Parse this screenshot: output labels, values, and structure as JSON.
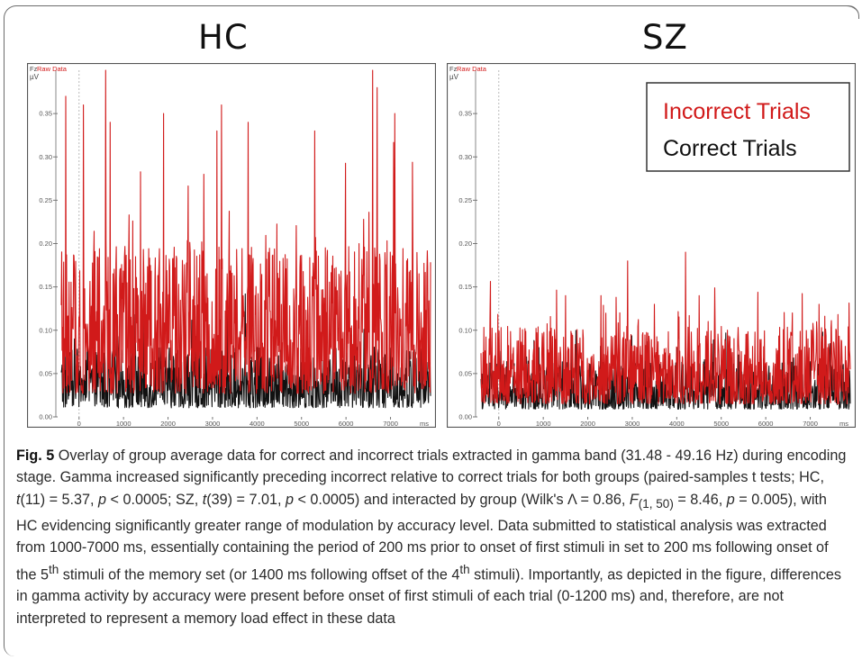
{
  "chart_data": [
    {
      "type": "line",
      "group": "HC",
      "channel_label": "Fz",
      "data_label": "Raw Data",
      "unit_label": "µV",
      "x_unit": "ms",
      "xlim": [
        -400,
        7900
      ],
      "ylim": [
        0,
        0.4
      ],
      "x_ticks": [
        0,
        1000,
        2000,
        3000,
        4000,
        5000,
        6000,
        7000
      ],
      "y_ticks": [
        0.0,
        0.05,
        0.1,
        0.15,
        0.2,
        0.25,
        0.3,
        0.35
      ],
      "y_tick_labels": [
        "0.00",
        "0.05",
        "0.10",
        "0.15",
        "0.20",
        "0.25",
        "0.30",
        "0.35"
      ],
      "x_tick_labels": [
        "0",
        "1000",
        "2000",
        "3000",
        "4000",
        "5000",
        "6000",
        "7000"
      ],
      "series": [
        {
          "name": "Correct Trials",
          "color": "#111111",
          "baseline": 0.035,
          "spread": 0.035,
          "peaks": [
            [
              -100,
              0.09
            ],
            [
              700,
              0.08
            ],
            [
              3000,
              0.09
            ],
            [
              6600,
              0.09
            ]
          ]
        },
        {
          "name": "Incorrect Trials",
          "color": "#d11a1a",
          "baseline": 0.09,
          "spread": 0.08,
          "peaks": [
            [
              -300,
              0.37
            ],
            [
              100,
              0.36
            ],
            [
              600,
              0.4
            ],
            [
              700,
              0.34
            ],
            [
              1900,
              0.35
            ],
            [
              2800,
              0.28
            ],
            [
              3100,
              0.33
            ],
            [
              3200,
              0.36
            ],
            [
              3800,
              0.34
            ],
            [
              5300,
              0.33
            ],
            [
              6600,
              0.4
            ],
            [
              6700,
              0.38
            ],
            [
              7100,
              0.35
            ]
          ]
        }
      ]
    },
    {
      "type": "line",
      "group": "SZ",
      "channel_label": "Fz",
      "data_label": "Raw Data",
      "unit_label": "µV",
      "x_unit": "ms",
      "xlim": [
        -400,
        7900
      ],
      "ylim": [
        0,
        0.4
      ],
      "x_ticks": [
        0,
        1000,
        2000,
        3000,
        4000,
        5000,
        6000,
        7000
      ],
      "y_ticks": [
        0.0,
        0.05,
        0.1,
        0.15,
        0.2,
        0.25,
        0.3,
        0.35
      ],
      "y_tick_labels": [
        "0.00",
        "0.05",
        "0.10",
        "0.15",
        "0.20",
        "0.25",
        "0.30",
        "0.35"
      ],
      "x_tick_labels": [
        "0",
        "1000",
        "2000",
        "3000",
        "4000",
        "5000",
        "6000",
        "7000"
      ],
      "legend": {
        "position": "top-right",
        "entries": [
          "Incorrect Trials",
          "Correct Trials"
        ]
      },
      "series": [
        {
          "name": "Correct Trials",
          "color": "#111111",
          "baseline": 0.03,
          "spread": 0.025,
          "peaks": [
            [
              900,
              0.08
            ],
            [
              2600,
              0.07
            ],
            [
              4000,
              0.08
            ]
          ]
        },
        {
          "name": "Incorrect Trials",
          "color": "#d11a1a",
          "baseline": 0.05,
          "spread": 0.04,
          "peaks": [
            [
              1500,
              0.14
            ],
            [
              2300,
              0.14
            ],
            [
              2900,
              0.18
            ],
            [
              3500,
              0.13
            ],
            [
              4200,
              0.19
            ],
            [
              4500,
              0.14
            ],
            [
              6600,
              0.12
            ],
            [
              7200,
              0.13
            ]
          ]
        }
      ]
    }
  ],
  "titles": {
    "hc": "HC",
    "sz": "SZ"
  },
  "legend": {
    "incorrect": "Incorrect Trials",
    "correct": "Correct Trials",
    "incorrect_color": "#d11a1a",
    "correct_color": "#111111"
  },
  "caption": {
    "fig_label": "Fig. 5",
    "s1": " Overlay of group average data for correct and incorrect trials extracted in gamma band (31.48 - 49.16 Hz) during encoding stage. Gamma increased significantly preceding incorrect relative to correct trials for both groups (paired-samples t tests; HC, ",
    "t1": "t",
    "s2": "(11) = 5.37, ",
    "p1": "p",
    "s3": " < 0.0005; SZ, ",
    "t2": "t",
    "s4": "(39) = 7.01, ",
    "p2": "p",
    "s5": " < 0.0005) and interacted by group (Wilk's Λ = 0.86, ",
    "F": "F",
    "F_sub": "(1, 50)",
    "s6": " = 8.46, ",
    "p3": "p",
    "s7": " = 0.005), with HC evidencing significantly greater range of modulation by accuracy level. Data submitted to statistical analysis was extracted from 1000-7000 ms, essentially containing the period of 200 ms prior to onset of first stimuli in set to 200 ms following onset of the 5",
    "sup1": "th",
    "s8": " stimuli of the memory set (or 1400 ms following offset of the 4",
    "sup2": "th",
    "s9": " stimuli). Importantly, as depicted in the figure, differences in gamma activity by accuracy were present before onset of first stimuli of each trial (0-1200 ms) and, therefore, are not interpreted to represent a memory load effect in these data"
  }
}
